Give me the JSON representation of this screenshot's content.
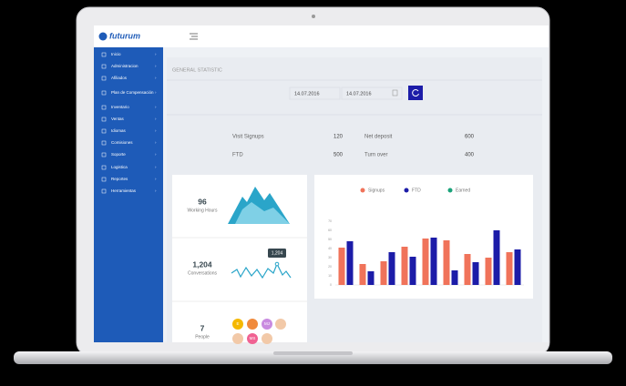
{
  "header": {
    "logo": "futurum"
  },
  "sidebar": {
    "items": [
      "Inicio",
      "Administracion",
      "Afiliados",
      "Plan de Compensación",
      "Inventario",
      "Ventas",
      "Idiomas",
      "Comisiones",
      "Soporte",
      "Logistica",
      "Reportes",
      "Herramientas"
    ]
  },
  "general": {
    "title": "GENERAL STATISTIC",
    "date_from": "14.07.2016",
    "date_to": "14.07.2016",
    "stats": [
      {
        "label": "Visit Signups",
        "value": 120
      },
      {
        "label": "FTD",
        "value": 500
      },
      {
        "label": "Net deposit",
        "value": 600
      },
      {
        "label": "Turn over",
        "value": 400
      }
    ]
  },
  "cards": [
    {
      "value": 96,
      "label": "Working Hours"
    },
    {
      "value": "1,204",
      "label": "Conversations",
      "tooltip": "1,204"
    },
    {
      "value": 7,
      "label": "People",
      "avatars": [
        "E",
        "MJ",
        "MS"
      ]
    }
  ],
  "chart_data": {
    "type": "bar",
    "categories": [
      null,
      null,
      null,
      null,
      null,
      null,
      null,
      null,
      null
    ],
    "series": [
      {
        "name": "Signups",
        "color": "#f0735a",
        "values": [
          41,
          23,
          26,
          42,
          51,
          49,
          34,
          30,
          36
        ]
      },
      {
        "name": "FTD",
        "color": "#1c1ca8",
        "values": [
          48,
          15,
          36,
          31,
          52,
          16,
          25,
          60,
          39
        ]
      },
      {
        "name": "Earned",
        "color": "#1aa37a",
        "values": [
          null,
          null,
          null,
          null,
          null,
          null,
          null,
          null,
          null
        ]
      }
    ],
    "ylim": [
      0,
      70
    ],
    "yticks": [
      0,
      10,
      20,
      30,
      40,
      50,
      60,
      70
    ],
    "grid": false
  }
}
